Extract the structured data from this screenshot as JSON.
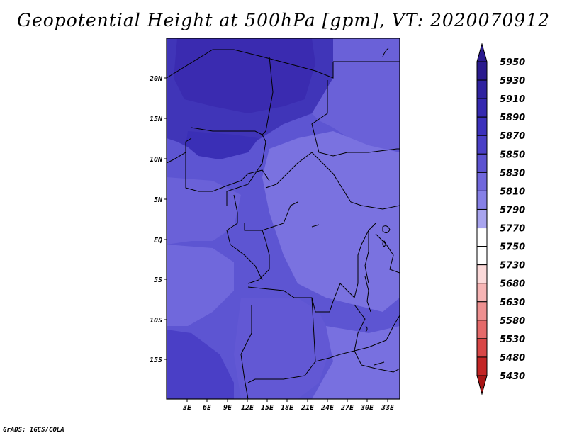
{
  "map": {
    "title": "Geopotential Height at 500hPa [gpm], VT: 2020070912",
    "footer": "GrADS: IGES/COLA",
    "lat_labels": [
      "20N",
      "15N",
      "10N",
      "5N",
      "EQ",
      "5S",
      "10S",
      "15S"
    ],
    "lon_labels": [
      "3E",
      "6E",
      "9E",
      "12E",
      "15E",
      "18E",
      "21E",
      "24E",
      "27E",
      "30E",
      "33E"
    ],
    "colorbar": {
      "levels": [
        "5950",
        "5930",
        "5910",
        "5890",
        "5870",
        "5850",
        "5830",
        "5810",
        "5790",
        "5770",
        "5750",
        "5730",
        "5680",
        "5630",
        "5580",
        "5530",
        "5480",
        "5430"
      ],
      "colors": [
        "#2a1a8e",
        "#2f22a0",
        "#3529b0",
        "#3c31bc",
        "#4a3fc6",
        "#5c52d0",
        "#7067dc",
        "#8680e6",
        "#a8a4ee",
        "#d2d0f6",
        "#ffffff",
        "#fbd9d9",
        "#f6b4b4",
        "#ee9090",
        "#e56a6a",
        "#d84646",
        "#c32525",
        "#a81616"
      ]
    }
  }
}
